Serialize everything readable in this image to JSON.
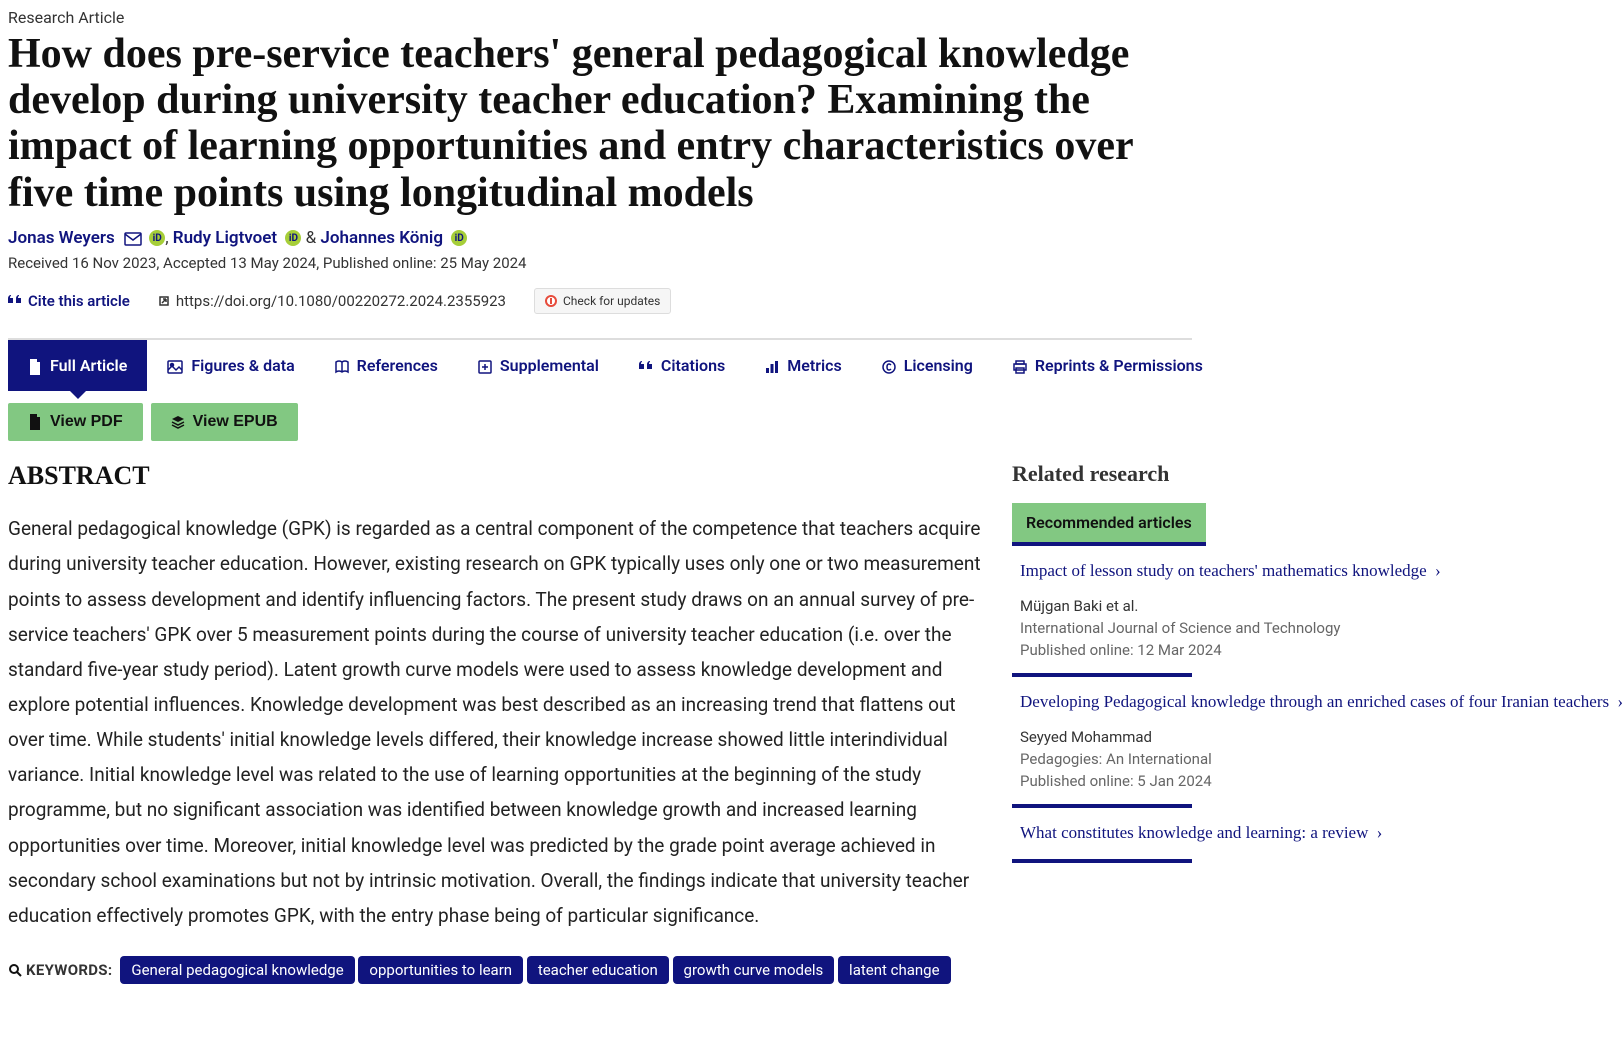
{
  "article_type": "Research Article",
  "title": "How does pre-service teachers' general pedagogical knowledge develop during university teacher education? Examining the impact of learning opportunities and entry characteristics over five time points using longitudinal models",
  "authors": [
    {
      "name": "Jonas Weyers",
      "mail": true,
      "orcid": true
    },
    {
      "name": "Rudy Ligtvoet",
      "mail": false,
      "orcid": true
    },
    {
      "name": "Johannes König",
      "mail": false,
      "orcid": true
    }
  ],
  "dates": "Received 16 Nov 2023, Accepted 13 May 2024, Published online: 25 May 2024",
  "cite_label": "Cite this article",
  "doi": "https://doi.org/10.1080/00220272.2024.2355923",
  "updates_label": "Check for updates",
  "tabs": [
    {
      "label": "Full Article",
      "icon": "file",
      "active": true
    },
    {
      "label": "Figures & data",
      "icon": "image",
      "active": false
    },
    {
      "label": "References",
      "icon": "book",
      "active": false
    },
    {
      "label": "Supplemental",
      "icon": "plus-square",
      "active": false
    },
    {
      "label": "Citations",
      "icon": "quote",
      "active": false
    },
    {
      "label": "Metrics",
      "icon": "bars",
      "active": false
    },
    {
      "label": "Licensing",
      "icon": "copyright",
      "active": false
    },
    {
      "label": "Reprints & Permissions",
      "icon": "print",
      "active": false
    }
  ],
  "view_buttons": [
    {
      "label": "View PDF",
      "icon": "file"
    },
    {
      "label": "View EPUB",
      "icon": "layers"
    }
  ],
  "abstract_heading": "ABSTRACT",
  "abstract": "General pedagogical knowledge (GPK) is regarded as a central component of the competence that teachers acquire during university teacher education. However, existing research on GPK typically uses only one or two measurement points to assess development and identify influencing factors. The present study draws on an annual survey of pre-service teachers' GPK over 5 measurement points during the course of university teacher education (i.e. over the standard five-year study period). Latent growth curve models were used to assess knowledge development and explore potential influences. Knowledge development was best described as an increasing trend that flattens out over time. While students' initial knowledge levels differed, their knowledge increase showed little interindividual variance. Initial knowledge level was related to the use of learning opportunities at the beginning of the study programme, but no significant association was identified between knowledge growth and increased learning opportunities over time. Moreover, initial knowledge level was predicted by the grade point average achieved in secondary school examinations but not by intrinsic motivation. Overall, the findings indicate that university teacher education effectively promotes GPK, with the entry phase being of particular significance.",
  "keywords_label": "KEYWORDS:",
  "keywords": [
    "General pedagogical knowledge",
    "opportunities to learn",
    "teacher education",
    "growth curve models",
    "latent change"
  ],
  "related_heading": "Related research",
  "recommended_label": "Recommended articles",
  "related": [
    {
      "title": "Impact of lesson study on teachers' mathematics knowledge",
      "author": "Müjgan Baki et al.",
      "journal": "International Journal of Science and Technology",
      "pub": "Published online: 12 Mar 2024"
    },
    {
      "title": "Developing Pedagogical knowledge through an enriched cases of four Iranian teachers",
      "author": "Seyyed Mohammad",
      "journal": "Pedagogies: An International",
      "pub": "Published online: 5 Jan 2024"
    },
    {
      "title": "What constitutes knowledge and learning: a review",
      "author": "",
      "journal": "",
      "pub": ""
    }
  ],
  "colors": {
    "primary": "#10147e",
    "green": "#82c882",
    "orcid": "#a6ce39"
  }
}
